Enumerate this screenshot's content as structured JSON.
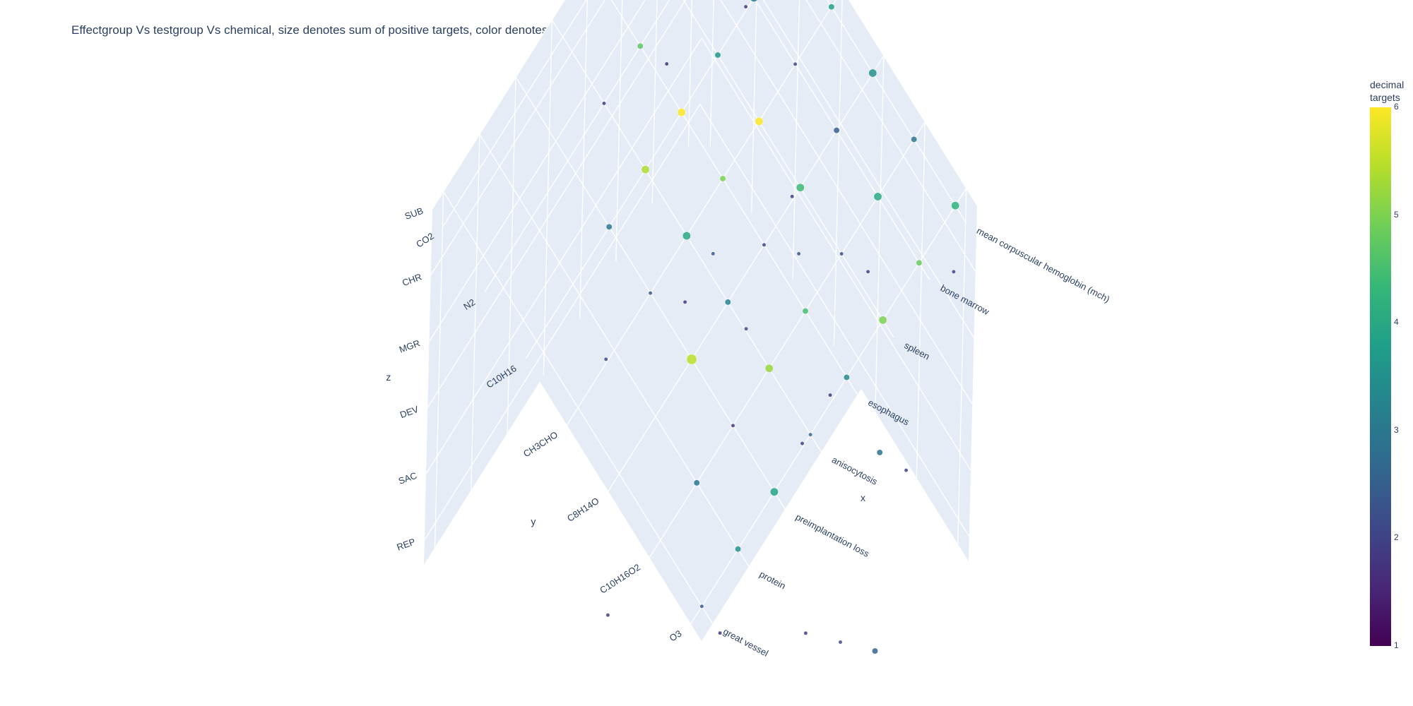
{
  "title": "Effectgroup Vs testgroup Vs chemical, size denotes sum of positive targets, color denotes amount of targets",
  "colorbar": {
    "title_line1": "decimal",
    "title_line2": "targets",
    "ticks": [
      "1",
      "2",
      "3",
      "4",
      "5",
      "6"
    ],
    "colorscale": [
      "#440154",
      "#482878",
      "#3e4989",
      "#31688e",
      "#26828e",
      "#1f9e89",
      "#35b779",
      "#6ece58",
      "#b5de2b",
      "#fde725"
    ]
  },
  "axes": {
    "x_title": "x",
    "y_title": "y",
    "z_title": "z",
    "x_ticks": [
      "great vessel",
      "protein",
      "preimplantation loss",
      "anisocytosis",
      "esophagus",
      "spleen",
      "bone marrow",
      "mean corpuscular hemoglobin (mch)"
    ],
    "y_ticks": [
      "O3",
      "C10H16O2",
      "C8H14O",
      "CH3CHO",
      "C10H16",
      "N2",
      "CO2"
    ],
    "z_ticks": [
      "SUB",
      "CHR",
      "MGR",
      "DEV",
      "SAC",
      "REP"
    ]
  },
  "chart_data": {
    "type": "scatter3d",
    "title": "Effectgroup Vs testgroup Vs chemical, size denotes sum of positive targets, color denotes amount of targets",
    "xlabel": "x",
    "ylabel": "y",
    "zlabel": "z",
    "colorbar_title": "decimal targets",
    "color_range": [
      1,
      6
    ],
    "points": [
      {
        "x": "mean corpuscular hemoglobin (mch)",
        "y": "O3",
        "z": "SUB",
        "size": 3,
        "color": 4.2
      },
      {
        "x": "bone marrow",
        "y": "O3",
        "z": "SUB",
        "size": 2,
        "color": 4.8
      },
      {
        "x": "spleen",
        "y": "O3",
        "z": "SUB",
        "size": 3,
        "color": 5.0
      },
      {
        "x": "esophagus",
        "y": "O3",
        "z": "SUB",
        "size": 2,
        "color": 3.4
      },
      {
        "x": "anisocytosis",
        "y": "O3",
        "z": "SUB",
        "size": 1,
        "color": 2.6
      },
      {
        "x": "preimplantation loss",
        "y": "O3",
        "z": "SUB",
        "size": 3,
        "color": 3.9
      },
      {
        "x": "protein",
        "y": "O3",
        "z": "SUB",
        "size": 2,
        "color": 3.5
      },
      {
        "x": "great vessel",
        "y": "O3",
        "z": "SUB",
        "size": 1,
        "color": 2.4
      },
      {
        "x": "mean corpuscular hemoglobin (mch)",
        "y": "C10H16O2",
        "z": "SUB",
        "size": 2,
        "color": 3.0
      },
      {
        "x": "bone marrow",
        "y": "C10H16O2",
        "z": "SUB",
        "size": 3,
        "color": 4.0
      },
      {
        "x": "spleen",
        "y": "C10H16O2",
        "z": "SUB",
        "size": 1,
        "color": 2.2
      },
      {
        "x": "esophagus",
        "y": "C10H16O2",
        "z": "SUB",
        "size": 2,
        "color": 4.5
      },
      {
        "x": "anisocytosis",
        "y": "C10H16O2",
        "z": "SUB",
        "size": 3,
        "color": 5.2
      },
      {
        "x": "preimplantation loss",
        "y": "C10H16O2",
        "z": "SUB",
        "size": 1,
        "color": 1.8
      },
      {
        "x": "protein",
        "y": "C10H16O2",
        "z": "SUB",
        "size": 2,
        "color": 2.9
      },
      {
        "x": "mean corpuscular hemoglobin (mch)",
        "y": "C8H14O",
        "z": "SUB",
        "size": 3,
        "color": 3.5
      },
      {
        "x": "bone marrow",
        "y": "C8H14O",
        "z": "SUB",
        "size": 2,
        "color": 2.5
      },
      {
        "x": "spleen",
        "y": "C8H14O",
        "z": "SUB",
        "size": 3,
        "color": 4.4
      },
      {
        "x": "esophagus",
        "y": "C8H14O",
        "z": "SUB",
        "size": 1,
        "color": 2.0
      },
      {
        "x": "anisocytosis",
        "y": "C8H14O",
        "z": "SUB",
        "size": 2,
        "color": 3.2
      },
      {
        "x": "preimplantation loss",
        "y": "C8H14O",
        "z": "SUB",
        "size": 4,
        "color": 5.5
      },
      {
        "x": "mean corpuscular hemoglobin (mch)",
        "y": "CH3CHO",
        "z": "SUB",
        "size": 2,
        "color": 3.8
      },
      {
        "x": "bone marrow",
        "y": "CH3CHO",
        "z": "SUB",
        "size": 1,
        "color": 2.1
      },
      {
        "x": "spleen",
        "y": "CH3CHO",
        "z": "SUB",
        "size": 3,
        "color": 6.0
      },
      {
        "x": "esophagus",
        "y": "CH3CHO",
        "z": "SUB",
        "size": 2,
        "color": 5.0
      },
      {
        "x": "anisocytosis",
        "y": "CH3CHO",
        "z": "SUB",
        "size": 3,
        "color": 4.0
      },
      {
        "x": "preimplantation loss",
        "y": "CH3CHO",
        "z": "SUB",
        "size": 1,
        "color": 2.3
      },
      {
        "x": "mean corpuscular hemoglobin (mch)",
        "y": "C10H16",
        "z": "SUB",
        "size": 4,
        "color": 6.0
      },
      {
        "x": "bone marrow",
        "y": "C10H16",
        "z": "SUB",
        "size": 3,
        "color": 3.1
      },
      {
        "x": "spleen",
        "y": "C10H16",
        "z": "SUB",
        "size": 2,
        "color": 3.6
      },
      {
        "x": "esophagus",
        "y": "C10H16",
        "z": "SUB",
        "size": 3,
        "color": 6.0
      },
      {
        "x": "anisocytosis",
        "y": "C10H16",
        "z": "SUB",
        "size": 3,
        "color": 5.4
      },
      {
        "x": "preimplantation loss",
        "y": "C10H16",
        "z": "SUB",
        "size": 2,
        "color": 3.0
      },
      {
        "x": "mean corpuscular hemoglobin (mch)",
        "y": "N2",
        "z": "SUB",
        "size": 3,
        "color": 3.7
      },
      {
        "x": "bone marrow",
        "y": "N2",
        "z": "SUB",
        "size": 2,
        "color": 2.8
      },
      {
        "x": "spleen",
        "y": "N2",
        "z": "SUB",
        "size": 4,
        "color": 3.4
      },
      {
        "x": "esophagus",
        "y": "N2",
        "z": "SUB",
        "size": 2,
        "color": 4.7
      },
      {
        "x": "anisocytosis",
        "y": "N2",
        "z": "SUB",
        "size": 1,
        "color": 1.9
      },
      {
        "x": "mean corpuscular hemoglobin (mch)",
        "y": "CO2",
        "z": "SUB",
        "size": 3,
        "color": 4.1
      },
      {
        "x": "bone marrow",
        "y": "CO2",
        "z": "SUB",
        "size": 2,
        "color": 2.6
      },
      {
        "x": "spleen",
        "y": "CO2",
        "z": "SUB",
        "size": 3,
        "color": 5.3
      },
      {
        "x": "esophagus",
        "y": "CO2",
        "z": "SUB",
        "size": 2,
        "color": 2.2
      },
      {
        "x": "mean corpuscular hemoglobin (mch)",
        "y": "O3",
        "z": "CHR",
        "size": 1,
        "color": 2.0
      },
      {
        "x": "spleen",
        "y": "C8H14O",
        "z": "CHR",
        "size": 1,
        "color": 2.3
      },
      {
        "x": "anisocytosis",
        "y": "CH3CHO",
        "z": "CHR",
        "size": 1,
        "color": 1.8
      },
      {
        "x": "bone marrow",
        "y": "N2",
        "z": "CHR",
        "size": 1,
        "color": 2.1
      },
      {
        "x": "mean corpuscular hemoglobin (mch)",
        "y": "CO2",
        "z": "CHR",
        "size": 1,
        "color": 1.7
      },
      {
        "x": "spleen",
        "y": "O3",
        "z": "MGR",
        "size": 2,
        "color": 2.9
      },
      {
        "x": "esophagus",
        "y": "C10H16O2",
        "z": "MGR",
        "size": 1,
        "color": 2.0
      },
      {
        "x": "bone marrow",
        "y": "CH3CHO",
        "z": "MGR",
        "size": 1,
        "color": 1.9
      },
      {
        "x": "preimplantation loss",
        "y": "C10H16",
        "z": "MGR",
        "size": 1,
        "color": 2.2
      },
      {
        "x": "mean corpuscular hemoglobin (mch)",
        "y": "N2",
        "z": "MGR",
        "size": 1,
        "color": 1.8
      },
      {
        "x": "anisocytosis",
        "y": "O3",
        "z": "DEV",
        "size": 1,
        "color": 1.9
      },
      {
        "x": "mean corpuscular hemoglobin (mch)",
        "y": "C8H14O",
        "z": "DEV",
        "size": 1,
        "color": 2.0
      },
      {
        "x": "spleen",
        "y": "C10H16",
        "z": "DEV",
        "size": 1,
        "color": 2.4
      },
      {
        "x": "bone marrow",
        "y": "CO2",
        "z": "DEV",
        "size": 1,
        "color": 1.7
      },
      {
        "x": "esophagus",
        "y": "O3",
        "z": "SAC",
        "size": 1,
        "color": 2.1
      },
      {
        "x": "bone marrow",
        "y": "C8H14O",
        "z": "SAC",
        "size": 1,
        "color": 1.8
      },
      {
        "x": "protein",
        "y": "CH3CHO",
        "z": "SAC",
        "size": 1,
        "color": 2.0
      },
      {
        "x": "spleen",
        "y": "O3",
        "z": "REP",
        "size": 2,
        "color": 2.6
      },
      {
        "x": "mean corpuscular hemoglobin (mch)",
        "y": "C10H16O2",
        "z": "REP",
        "size": 1,
        "color": 2.0
      },
      {
        "x": "anisocytosis",
        "y": "C8H14O",
        "z": "REP",
        "size": 1,
        "color": 1.9
      },
      {
        "x": "bone marrow",
        "y": "C10H16",
        "z": "REP",
        "size": 1,
        "color": 2.2
      }
    ]
  }
}
